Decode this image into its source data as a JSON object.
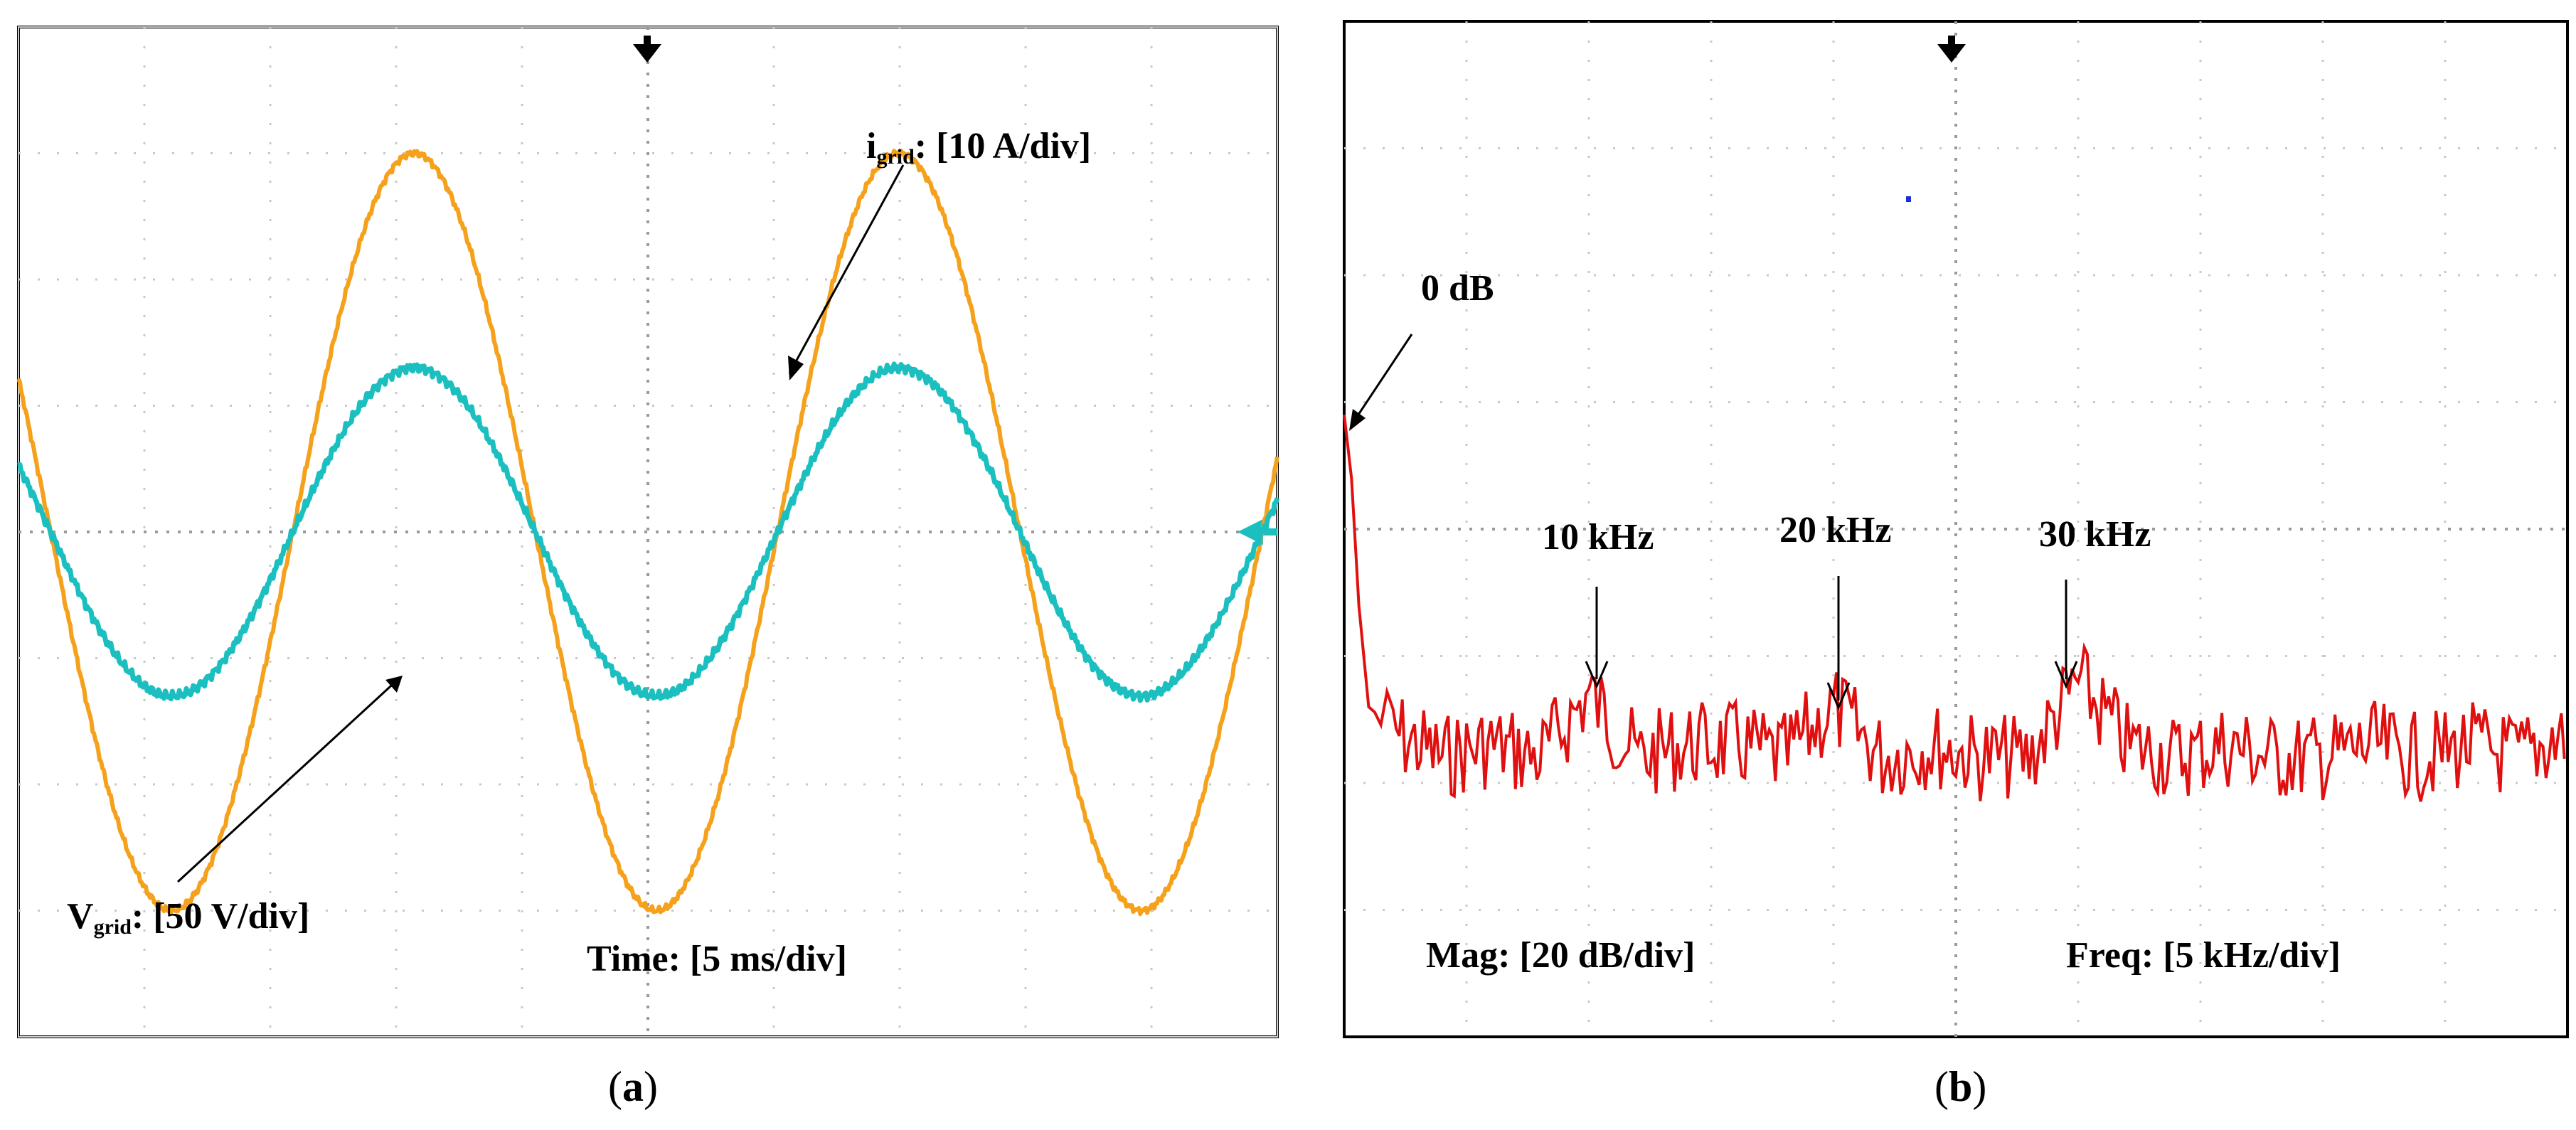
{
  "chart_data": [
    {
      "panel": "(a)",
      "type": "line",
      "grid": true,
      "divisions": {
        "x": 10,
        "y": 8
      },
      "time_scale": "Time: [5 ms/div]",
      "labels": {
        "vgrid_main": "V",
        "vgrid_sub": "grid",
        "vgrid_scale": ": [50 V/div]",
        "igrid_main": "i",
        "igrid_sub": "grid",
        "igrid_scale": ": [10 A/div]"
      },
      "series": [
        {
          "name": "Vgrid",
          "color": "#F5A11C",
          "unit": "div",
          "amplitude_div": 3.0,
          "period_div": 3.85,
          "cycles_shown": 2.6,
          "offset_div": 0
        },
        {
          "name": "igrid",
          "color": "#1BBFBF",
          "unit": "div",
          "amplitude_div": 1.3,
          "period_div": 3.85,
          "cycles_shown": 2.6,
          "offset_div": 0
        }
      ],
      "ylim_div": [
        -4,
        4
      ],
      "xlim_div": [
        0,
        10
      ]
    },
    {
      "panel": "(b)",
      "type": "line",
      "grid": true,
      "divisions": {
        "x": 10,
        "y": 8
      },
      "mag_scale": "Mag: [20 dB/div]",
      "freq_scale": "Freq: [5 kHz/div]",
      "annotations": [
        "0 dB",
        "10 kHz",
        "20 kHz",
        "30 kHz"
      ],
      "series": [
        {
          "name": "spectrum",
          "color": "#E01010",
          "x_khz": [
            0,
            0.3,
            0.6,
            1.0,
            2,
            4,
            6,
            8,
            10,
            12,
            14,
            16,
            18,
            20,
            22,
            24,
            26,
            28,
            30,
            32,
            34,
            36,
            38,
            40,
            42,
            44,
            46,
            48,
            50
          ],
          "y_div_from_top": [
            3.1,
            3.6,
            4.6,
            5.4,
            5.6,
            5.8,
            5.7,
            5.8,
            5.3,
            5.8,
            5.7,
            5.7,
            5.8,
            5.4,
            5.8,
            5.7,
            5.8,
            5.8,
            5.2,
            5.7,
            5.8,
            5.7,
            5.8,
            5.8,
            5.7,
            5.8,
            5.7,
            5.8,
            5.6
          ]
        }
      ],
      "xlim_khz": [
        0,
        50
      ]
    }
  ],
  "captions": {
    "a": "a",
    "b": "b"
  }
}
